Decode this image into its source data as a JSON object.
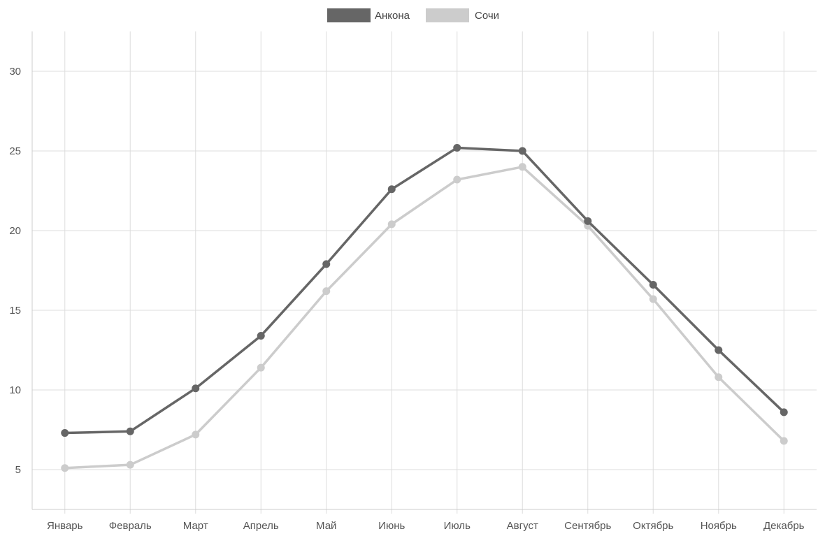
{
  "chart_data": {
    "type": "line",
    "title": "",
    "xlabel": "",
    "ylabel": "",
    "categories": [
      "Январь",
      "Февраль",
      "Март",
      "Апрель",
      "Май",
      "Июнь",
      "Июль",
      "Август",
      "Сентябрь",
      "Октябрь",
      "Ноябрь",
      "Декабрь"
    ],
    "series": [
      {
        "name": "Анкона",
        "color": "#666666",
        "values": [
          7.3,
          7.4,
          10.1,
          13.4,
          17.9,
          22.6,
          25.2,
          25.0,
          20.6,
          16.6,
          12.5,
          8.6
        ]
      },
      {
        "name": "Сочи",
        "color": "#cccccc",
        "values": [
          5.1,
          5.3,
          7.2,
          11.4,
          16.2,
          20.4,
          23.2,
          24.0,
          20.3,
          15.7,
          10.8,
          6.8
        ]
      }
    ],
    "y_ticks": [
      5,
      10,
      15,
      20,
      25,
      30
    ],
    "ylim": [
      2.5,
      32.5
    ],
    "grid": true,
    "legend_position": "top-center"
  }
}
